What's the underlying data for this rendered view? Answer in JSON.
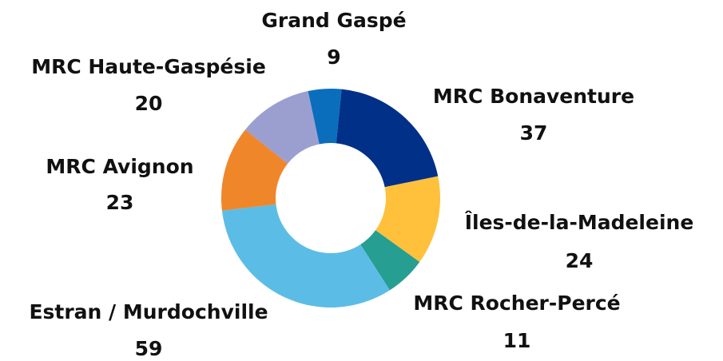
{
  "chart_data": {
    "type": "donut",
    "categories": [
      "Grand Gaspé",
      "MRC Bonaventure",
      "Îles-de-la-Madeleine",
      "MRC Rocher-Percé",
      "Estran / Murdochville",
      "MRC Avignon",
      "MRC Haute-Gaspésie"
    ],
    "values": [
      9,
      37,
      24,
      11,
      59,
      23,
      20
    ],
    "colors": [
      "#0a6ebd",
      "#003087",
      "#ffc13b",
      "#269e92",
      "#5bbde6",
      "#f0862a",
      "#9a9fd0"
    ]
  }
}
